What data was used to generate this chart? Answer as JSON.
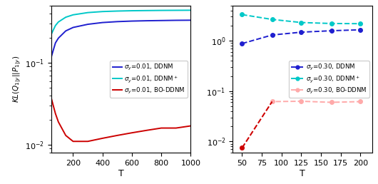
{
  "left_plot": {
    "xlabel": "T",
    "ylabel": "KL(Q_{1|y}||P_{1|y})",
    "xlim": [
      50,
      1000
    ],
    "ylim_log": [
      0.008,
      0.5
    ],
    "xticks": [
      200,
      400,
      600,
      800,
      1000
    ],
    "yticks": [
      0.01,
      0.1
    ],
    "lines": [
      {
        "label": "$\\sigma_y$=0.01, DDNM",
        "color": "#1f1fcf",
        "style": "-",
        "x": [
          50,
          80,
          100,
          150,
          200,
          300,
          400,
          500,
          600,
          700,
          800,
          900,
          1000
        ],
        "y": [
          0.115,
          0.175,
          0.2,
          0.245,
          0.27,
          0.295,
          0.31,
          0.318,
          0.323,
          0.326,
          0.328,
          0.33,
          0.331
        ]
      },
      {
        "label": "$\\sigma_y$=0.01, DDNM$^+$",
        "color": "#00c8c8",
        "style": "-",
        "x": [
          50,
          80,
          100,
          150,
          200,
          300,
          400,
          500,
          600,
          700,
          800,
          900,
          1000
        ],
        "y": [
          0.22,
          0.285,
          0.315,
          0.36,
          0.385,
          0.41,
          0.422,
          0.428,
          0.432,
          0.434,
          0.436,
          0.437,
          0.438
        ]
      },
      {
        "label": "$\\sigma_y$=0.01, BO-DDNM",
        "color": "#cc0000",
        "style": "-",
        "x": [
          50,
          80,
          100,
          150,
          200,
          300,
          400,
          500,
          600,
          700,
          800,
          900,
          1000
        ],
        "y": [
          0.038,
          0.024,
          0.019,
          0.013,
          0.011,
          0.011,
          0.012,
          0.013,
          0.014,
          0.015,
          0.016,
          0.016,
          0.017
        ]
      }
    ],
    "legend": {
      "labels": [
        "$\\sigma_y$=0.01, DDNM",
        "$\\sigma_y$=0.01, DDNM$^+$",
        "$\\sigma_y$=0.01, BO-DDNM"
      ],
      "colors": [
        "#1f1fcf",
        "#00c8c8",
        "#cc0000"
      ]
    }
  },
  "right_plot": {
    "xlabel": "T",
    "xlim": [
      38,
      215
    ],
    "ylim_log": [
      0.006,
      5.0
    ],
    "xticks": [
      50,
      75,
      100,
      125,
      150,
      175,
      200
    ],
    "lines": [
      {
        "label": "$\\sigma_y$=0.30, DDNM",
        "color": "#1f1fcf",
        "style": "--",
        "marker": "o",
        "markersize": 4,
        "x": [
          50,
          88,
          125,
          163,
          200
        ],
        "y": [
          0.88,
          1.3,
          1.48,
          1.58,
          1.65
        ]
      },
      {
        "label": "$\\sigma_y$=0.30, DDNM$^+$",
        "color": "#00c8c8",
        "style": "--",
        "marker": "o",
        "markersize": 4,
        "x": [
          50,
          88,
          125,
          163,
          200
        ],
        "y": [
          3.3,
          2.65,
          2.3,
          2.2,
          2.18
        ]
      },
      {
        "label": "$\\sigma_y$=0.30, BO-DDNM",
        "color": "#ffaaaa",
        "dark_color": "#cc0000",
        "style": "--",
        "marker": "o",
        "markersize": 4,
        "x": [
          50,
          88,
          125,
          163,
          200
        ],
        "y": [
          0.0075,
          0.062,
          0.063,
          0.06,
          0.062
        ]
      }
    ],
    "legend": {
      "labels": [
        "$\\sigma_y$=0.30, DDNM",
        "$\\sigma_y$=0.30, DDNM$^+$",
        "$\\sigma_y$=0.30, BO-DDNM"
      ],
      "colors": [
        "#1f1fcf",
        "#00c8c8",
        "#ffaaaa"
      ]
    }
  }
}
